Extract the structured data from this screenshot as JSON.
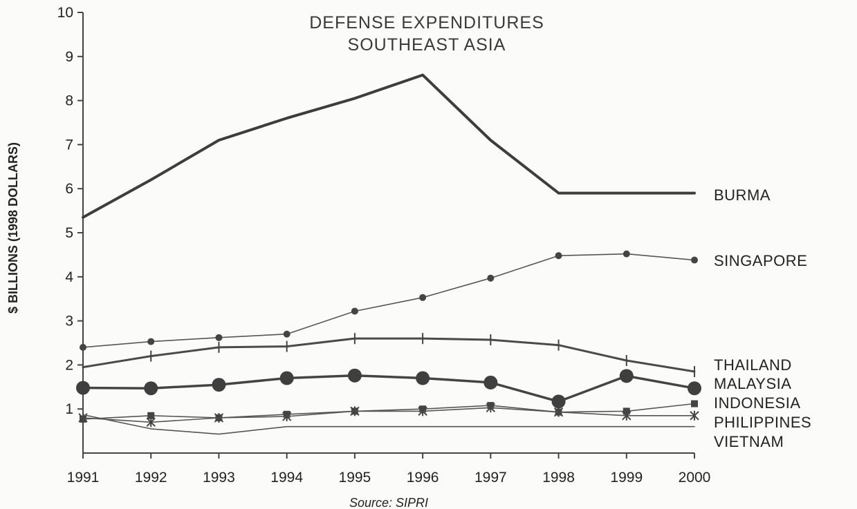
{
  "chart_data": {
    "type": "line",
    "title": [
      "DEFENSE EXPENDITURES",
      "SOUTHEAST ASIA"
    ],
    "ylabel": "$ BILLIONS (1998 DOLLARS)",
    "xlabel": "",
    "source": "Source: SIPRI",
    "x": [
      1991,
      1992,
      1993,
      1994,
      1995,
      1996,
      1997,
      1998,
      1999,
      2000
    ],
    "x_tick_labels": [
      "1991",
      "1992",
      "1993",
      "1994",
      "1995",
      "1996",
      "1997",
      "1998",
      "1999",
      "2000"
    ],
    "ylim": [
      0,
      10
    ],
    "y_tick_labels": [
      "1",
      "2",
      "3",
      "4",
      "5",
      "6",
      "7",
      "8",
      "9",
      "10"
    ],
    "y_ticks": [
      1,
      2,
      3,
      4,
      5,
      6,
      7,
      8,
      9,
      10
    ],
    "grid": false,
    "legend": "labels at line ends (right)",
    "series": [
      {
        "name": "BURMA",
        "marker": "none",
        "color": "#3d3d3d",
        "values": [
          5.35,
          6.2,
          7.1,
          7.6,
          8.05,
          8.58,
          7.1,
          5.9,
          5.9,
          5.9
        ]
      },
      {
        "name": "SINGAPORE",
        "marker": "dot",
        "color": "#555555",
        "values": [
          2.4,
          2.53,
          2.62,
          2.7,
          3.22,
          3.53,
          3.97,
          4.48,
          4.52,
          4.38
        ]
      },
      {
        "name": "THAILAND",
        "marker": "plus",
        "color": "#555555",
        "values": [
          1.95,
          2.2,
          2.4,
          2.42,
          2.6,
          2.6,
          2.57,
          2.45,
          2.1,
          1.85
        ]
      },
      {
        "name": "MALAYSIA",
        "marker": "bigdot",
        "color": "#555555",
        "values": [
          1.48,
          1.47,
          1.55,
          1.7,
          1.76,
          1.7,
          1.6,
          1.17,
          1.75,
          1.47
        ]
      },
      {
        "name": "INDONESIA",
        "marker": "square",
        "color": "#555555",
        "values": [
          0.77,
          0.85,
          0.8,
          0.88,
          0.95,
          1.0,
          1.08,
          0.93,
          0.95,
          1.12
        ]
      },
      {
        "name": "PHILIPPINES",
        "marker": "star",
        "color": "#555555",
        "values": [
          0.8,
          0.7,
          0.8,
          0.83,
          0.95,
          0.95,
          1.03,
          0.93,
          0.85,
          0.85
        ]
      },
      {
        "name": "VIETNAM",
        "marker": "none",
        "color": "#555555",
        "values": [
          0.87,
          0.55,
          0.43,
          0.6,
          0.6,
          0.6,
          0.6,
          0.6,
          0.6,
          0.6
        ]
      }
    ]
  }
}
